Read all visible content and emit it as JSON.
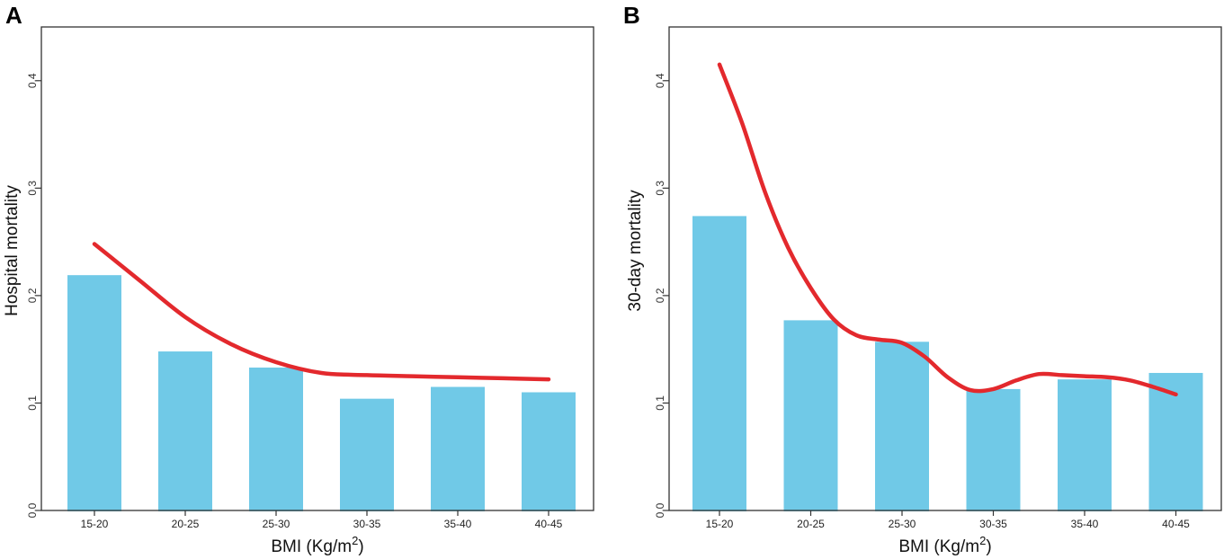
{
  "chart_data": [
    {
      "panel": "A",
      "type": "bar",
      "categories": [
        "15-20",
        "20-25",
        "25-30",
        "30-35",
        "35-40",
        "40-45"
      ],
      "values": [
        0.219,
        0.148,
        0.133,
        0.104,
        0.115,
        0.11
      ],
      "curve": {
        "x": [
          0,
          0.5,
          1,
          1.5,
          2,
          2.5,
          3,
          3.5,
          4,
          4.5,
          5
        ],
        "y": [
          0.248,
          0.214,
          0.18,
          0.155,
          0.138,
          0.128,
          0.126,
          0.125,
          0.124,
          0.123,
          0.122
        ]
      },
      "xlabel_main": "BMI (Kg/m",
      "xlabel_sup": "2",
      "xlabel_end": ")",
      "ylabel": "Hospital mortality",
      "yticks": [
        "0.0",
        "0.1",
        "0.2",
        "0.3",
        "0.4"
      ],
      "ylim": [
        0,
        0.45
      ],
      "bar_color": "#70c9e7",
      "curve_color": "#e3292d"
    },
    {
      "panel": "B",
      "type": "bar",
      "categories": [
        "15-20",
        "20-25",
        "25-30",
        "30-35",
        "35-40",
        "40-45"
      ],
      "values": [
        0.274,
        0.177,
        0.157,
        0.113,
        0.122,
        0.128
      ],
      "curve": {
        "x": [
          0,
          0.25,
          0.5,
          0.75,
          1,
          1.25,
          1.5,
          1.75,
          2,
          2.25,
          2.5,
          2.75,
          3,
          3.25,
          3.5,
          3.75,
          4,
          4.25,
          4.5,
          4.75,
          5
        ],
        "y": [
          0.415,
          0.36,
          0.296,
          0.245,
          0.207,
          0.178,
          0.163,
          0.159,
          0.156,
          0.143,
          0.124,
          0.112,
          0.113,
          0.121,
          0.127,
          0.126,
          0.125,
          0.124,
          0.121,
          0.115,
          0.108
        ]
      },
      "xlabel_main": "BMI (Kg/m",
      "xlabel_sup": "2",
      "xlabel_end": ")",
      "ylabel": "30-day mortality",
      "yticks": [
        "0.0",
        "0.1",
        "0.2",
        "0.3",
        "0.4"
      ],
      "ylim": [
        0,
        0.45
      ],
      "bar_color": "#70c9e7",
      "curve_color": "#e3292d"
    }
  ]
}
